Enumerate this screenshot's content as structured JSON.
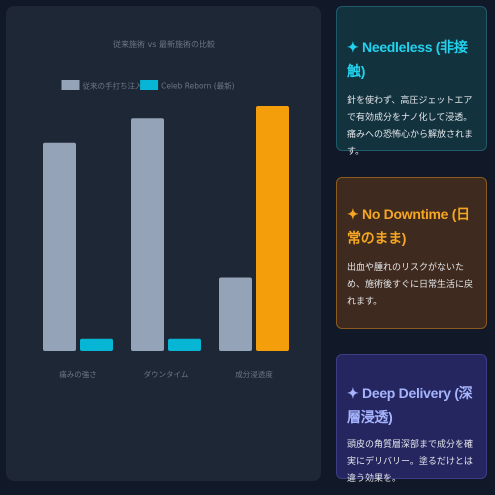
{
  "chart_data": {
    "type": "bar",
    "title": "従来施術 vs 最新施術の比較",
    "categories": [
      "痛みの強さ",
      "ダウンタイム",
      "成分浸透度"
    ],
    "series": [
      {
        "name": "従来の手打ち注入",
        "color": "#94a3b8",
        "values": [
          85,
          95,
          30
        ]
      },
      {
        "name": "Celeb Reborn (最新)",
        "color": "#06b6d4",
        "values": [
          5,
          5,
          100
        ]
      }
    ],
    "highlight_color": "#f59e0b",
    "ylim": [
      0,
      100
    ],
    "legend_position": "top",
    "grid": false
  },
  "cards": [
    {
      "title": "✦ Needleless (非接触)",
      "body": "針を使わず、高圧ジェットエアで有効成分をナノ化して浸透。痛みへの恐怖心から解放されます。"
    },
    {
      "title": "✦ No Downtime (日常のまま)",
      "body": "出血や腫れのリスクがないため、施術後すぐに日常生活に戻れます。"
    },
    {
      "title": "✦ Deep Delivery (深層浸透)",
      "body": "頭皮の角質層深部まで成分を確実にデリバリー。塗るだけとは違う効果を。"
    }
  ]
}
